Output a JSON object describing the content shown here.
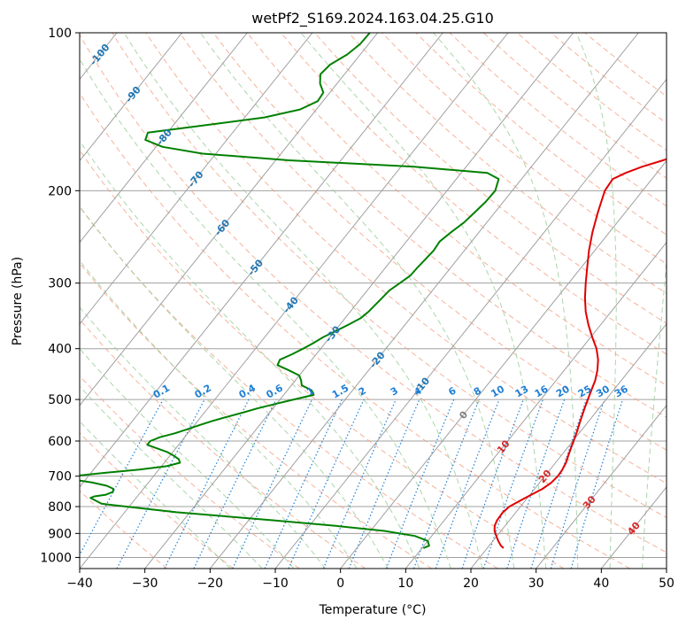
{
  "chart_data": {
    "type": "line",
    "subtype": "skew-t log-p",
    "title": "wetPf2_S169.2024.163.04.25.G10",
    "xlabel": "Temperature (°C)",
    "ylabel": "Pressure (hPa)",
    "xlim": [
      -40,
      50
    ],
    "ylim": [
      1050,
      100
    ],
    "yscale": "log",
    "grid": true,
    "x_ticks": [
      "−40",
      "−30",
      "−20",
      "−10",
      "0",
      "10",
      "20",
      "30",
      "40",
      "50"
    ],
    "x_tick_values": [
      -40,
      -30,
      -20,
      -10,
      0,
      10,
      20,
      30,
      40,
      50
    ],
    "y_ticks": [
      "100",
      "200",
      "300",
      "400",
      "500",
      "600",
      "700",
      "800",
      "900",
      "1000"
    ],
    "y_tick_values": [
      100,
      200,
      300,
      400,
      500,
      600,
      700,
      800,
      900,
      1000
    ],
    "isotherm_labels": [
      "-100",
      "-90",
      "-80",
      "-70",
      "-60",
      "-50",
      "-40",
      "-30",
      "-20",
      "-10",
      "0",
      "10",
      "20",
      "30",
      "40"
    ],
    "isotherm_label_values": [
      -100,
      -90,
      -80,
      -70,
      -60,
      -50,
      -40,
      -30,
      -20,
      -10,
      0,
      10,
      20,
      30,
      40
    ],
    "mixing_ratio_labels": [
      "0.1",
      "0.2",
      "0.4",
      "0.6",
      "1",
      "1.5",
      "2",
      "3",
      "4",
      "6",
      "8",
      "10",
      "13",
      "16",
      "20",
      "25",
      "30",
      "36"
    ],
    "mixing_ratio_values": [
      0.1,
      0.2,
      0.4,
      0.6,
      1,
      1.5,
      2,
      3,
      4,
      6,
      8,
      10,
      13,
      16,
      20,
      25,
      30,
      36
    ],
    "colors": {
      "temperature": "#e00000",
      "dewpoint": "#008000",
      "isotherm": "#a0a0a0",
      "dry_adiabat": "#f4a58a",
      "moist_adiabat": "#9ccf9c",
      "mixing_ratio": "#1e7fd6",
      "isotherm_label_cold": "#1f77b4",
      "isotherm_label_warm": "#d62728",
      "isotherm_label_zero": "#808080"
    },
    "series": [
      {
        "key": "temperature",
        "p": [
          960,
          950,
          930,
          910,
          890,
          870,
          850,
          820,
          800,
          780,
          760,
          740,
          720,
          700,
          680,
          660,
          640,
          620,
          600,
          580,
          560,
          540,
          520,
          500,
          480,
          460,
          440,
          420,
          400,
          380,
          360,
          340,
          320,
          300,
          280,
          260,
          240,
          220,
          200,
          190,
          185,
          180,
          175,
          170,
          165,
          160,
          155,
          150,
          145,
          140,
          135,
          130,
          125,
          120,
          115,
          110,
          105,
          100
        ],
        "t": [
          22.5,
          21.8,
          20.8,
          19.9,
          19.0,
          18.4,
          18.1,
          18.0,
          18.3,
          19.2,
          20.2,
          21.2,
          21.8,
          22.0,
          21.9,
          21.6,
          21.1,
          20.6,
          20.1,
          19.6,
          19.0,
          18.4,
          17.8,
          17.2,
          16.6,
          16.0,
          15.1,
          13.9,
          12.3,
          10.2,
          8.1,
          6.1,
          4.3,
          2.6,
          0.9,
          -0.9,
          -2.6,
          -4.2,
          -5.8,
          -6.0,
          -4.8,
          -3.0,
          -0.6,
          1.8,
          3.9,
          5.7,
          7.2,
          7.6,
          7.6,
          7.0,
          6.2,
          5.3,
          4.6,
          4.1,
          3.8,
          4.0,
          4.7,
          5.5
        ]
      },
      {
        "key": "dewpoint",
        "p": [
          960,
          950,
          930,
          910,
          890,
          870,
          850,
          820,
          800,
          790,
          780,
          770,
          765,
          760,
          750,
          740,
          730,
          720,
          710,
          700,
          690,
          680,
          670,
          660,
          650,
          640,
          630,
          620,
          610,
          600,
          590,
          580,
          570,
          560,
          550,
          540,
          530,
          520,
          510,
          500,
          490,
          480,
          470,
          460,
          450,
          440,
          430,
          420,
          410,
          400,
          390,
          380,
          370,
          360,
          350,
          340,
          330,
          320,
          310,
          300,
          290,
          280,
          270,
          260,
          250,
          240,
          230,
          220,
          210,
          200,
          190,
          185,
          180,
          175,
          170,
          165,
          160,
          155,
          150,
          145,
          140,
          135,
          130,
          125,
          120,
          115,
          110,
          105,
          100
        ],
        "td": [
          10.2,
          10.8,
          10.0,
          7.4,
          2.1,
          -6.2,
          -16.1,
          -32.1,
          -40.5,
          -44.6,
          -45.8,
          -47.0,
          -46.6,
          -45.1,
          -44.3,
          -44.6,
          -46.0,
          -48.6,
          -52.0,
          -52.5,
          -48.0,
          -43.0,
          -39.2,
          -37.6,
          -38.2,
          -39.4,
          -40.8,
          -42.8,
          -44.8,
          -44.8,
          -43.8,
          -42.0,
          -40.6,
          -39.3,
          -37.8,
          -36.1,
          -34.2,
          -32.4,
          -30.2,
          -27.9,
          -25.4,
          -26.3,
          -28.4,
          -29.1,
          -30.0,
          -32.2,
          -34.6,
          -34.9,
          -33.7,
          -32.7,
          -31.8,
          -31.0,
          -29.8,
          -28.7,
          -27.6,
          -27.2,
          -27.0,
          -26.8,
          -26.6,
          -25.9,
          -25.2,
          -25.1,
          -24.9,
          -24.7,
          -24.9,
          -24.3,
          -23.5,
          -23.1,
          -22.7,
          -22.6,
          -23.5,
          -26.0,
          -38.0,
          -58.0,
          -72.0,
          -79.0,
          -82.5,
          -83.0,
          -75.0,
          -67.0,
          -62.5,
          -60.8,
          -61.0,
          -62.6,
          -63.7,
          -63.4,
          -62.0,
          -61.3,
          -61.2
        ]
      }
    ]
  }
}
